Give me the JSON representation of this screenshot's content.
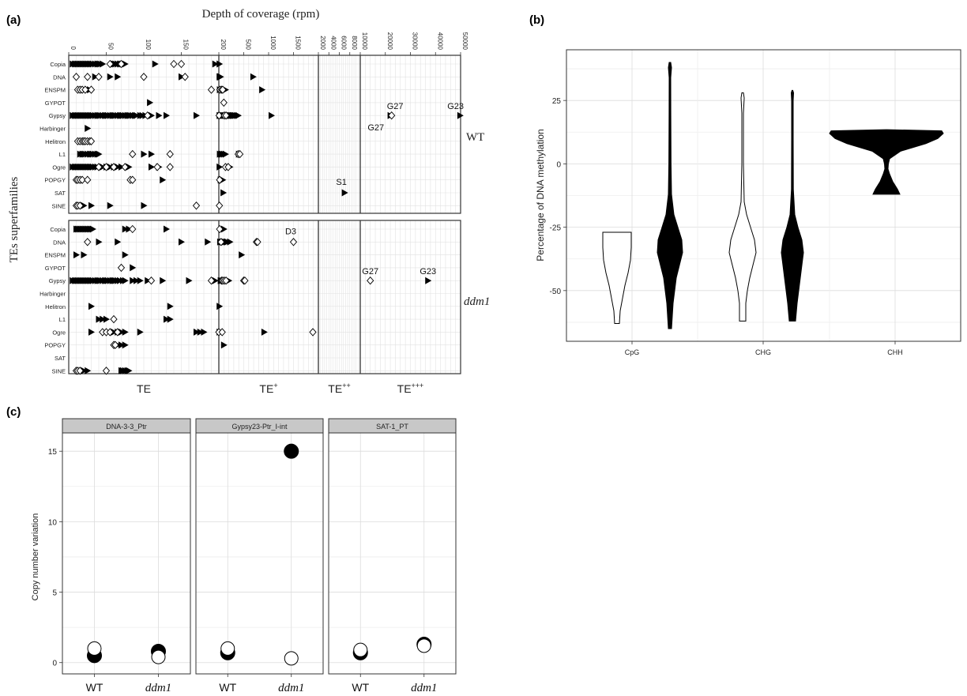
{
  "panels": {
    "a": "(a)",
    "b": "(b)",
    "c": "(c)"
  },
  "chart_data": [
    {
      "panel": "(a)",
      "type": "scatter",
      "title": "Depth of coverage (rpm)",
      "ylabel": "TEs superfamilies",
      "xlabel": "",
      "superfamilies": [
        "Copia",
        "DNA",
        "ENSPM",
        "GYPOT",
        "Gypsy",
        "Harbinger",
        "Helitron",
        "L1",
        "Ogre",
        "POPGY",
        "SAT",
        "SINE"
      ],
      "facets": [
        "WT",
        "ddm1"
      ],
      "segments": [
        {
          "label": "TE",
          "tick_labels": [
            "0",
            "50",
            "100",
            "150",
            "200"
          ],
          "range": [
            0,
            200
          ]
        },
        {
          "label": "TE",
          "sup": "+",
          "tick_labels": [
            "200",
            "500",
            "1000",
            "1500",
            "2000"
          ],
          "range": [
            200,
            2000
          ]
        },
        {
          "label": "TE",
          "sup": "++",
          "tick_labels": [
            "2000",
            "4000",
            "6000",
            "8000",
            "10000"
          ],
          "range": [
            2000,
            10000
          ]
        },
        {
          "label": "TE",
          "sup": "+++",
          "tick_labels": [
            "10000",
            "20000",
            "30000",
            "40000",
            "50000"
          ],
          "range": [
            10000,
            50000
          ]
        }
      ],
      "marker_legend": {
        "filled_triangle": "black right-pointing triangle",
        "open_diamond": "open diamond"
      },
      "annotations": [
        {
          "facet": "WT",
          "text": "G27",
          "x": 22000,
          "y": "Gypsy"
        },
        {
          "facet": "WT",
          "text": "G27",
          "x": 20000,
          "y": "Gypsy"
        },
        {
          "facet": "WT",
          "text": "G23",
          "x": 48000,
          "y": "Gypsy"
        },
        {
          "facet": "WT",
          "text": "S1",
          "x": 7000,
          "y": "SAT"
        },
        {
          "facet": "ddm1",
          "text": "D3",
          "x": 1500,
          "y": "DNA"
        },
        {
          "facet": "ddm1",
          "text": "G27",
          "x": 14000,
          "y": "Gypsy"
        },
        {
          "facet": "ddm1",
          "text": "G23",
          "x": 37000,
          "y": "Gypsy"
        }
      ],
      "points": {
        "WT": [
          {
            "fam": "Copia",
            "tri": [
              5,
              8,
              10,
              12,
              14,
              16,
              18,
              20,
              22,
              24,
              26,
              28,
              30,
              32,
              35,
              38,
              40,
              42,
              45,
              60,
              62,
              65,
              68,
              70,
              72,
              75,
              115,
              195,
              210
            ],
            "dia": [
              55,
              70,
              140,
              150
            ]
          },
          {
            "fam": "DNA",
            "tri": [
              35,
              55,
              65,
              150,
              210,
              215,
              220,
              225,
              230,
              820
            ],
            "dia": [
              10,
              25,
              40,
              100,
              155
            ]
          },
          {
            "fam": "ENSPM",
            "tri": [
              20,
              25,
              28,
              215,
              320,
              980
            ],
            "dia": [
              12,
              15,
              18,
              22,
              30,
              190,
              220,
              250,
              270
            ]
          },
          {
            "fam": "GYPOT",
            "tri": [
              108
            ],
            "dia": [
              290
            ]
          },
          {
            "fam": "Gypsy",
            "tri": [
              5,
              8,
              10,
              12,
              14,
              16,
              18,
              20,
              22,
              24,
              26,
              28,
              30,
              32,
              35,
              38,
              40,
              42,
              45,
              48,
              50,
              52,
              55,
              58,
              60,
              62,
              65,
              68,
              70,
              72,
              75,
              78,
              80,
              82,
              85,
              88,
              90,
              95,
              98,
              102,
              110,
              120,
              130,
              170,
              210,
              230,
              250,
              270,
              290,
              310,
              330,
              350,
              370,
              390,
              410,
              430,
              450,
              470,
              490,
              520,
              550,
              1150,
              22000,
              49800
            ],
            "dia": [
              105,
              205,
              300,
              330,
              22500
            ]
          },
          {
            "fam": "Harbinger",
            "tri": [
              25
            ],
            "dia": []
          },
          {
            "fam": "Helitron",
            "tri": [],
            "dia": [
              12,
              15,
              18,
              20,
              22,
              25,
              28,
              30
            ]
          },
          {
            "fam": "L1",
            "tri": [
              15,
              18,
              20,
              22,
              25,
              28,
              30,
              32,
              35,
              38,
              40,
              100,
              110,
              215,
              240,
              260,
              290,
              320,
              560
            ],
            "dia": [
              85,
              135,
              550,
              580
            ]
          },
          {
            "fam": "Ogre",
            "tri": [
              5,
              8,
              10,
              12,
              14,
              16,
              18,
              20,
              22,
              24,
              26,
              28,
              30,
              32,
              35,
              38,
              45,
              50,
              55,
              60,
              65,
              70,
              80,
              110,
              120,
              210,
              400
            ],
            "dia": [
              40,
              50,
              60,
              75,
              118,
              135,
              320,
              370
            ]
          },
          {
            "fam": "POPGY",
            "tri": [
              15,
              20,
              125,
              230,
              270
            ],
            "dia": [
              10,
              12,
              15,
              18,
              25,
              82,
              85,
              215
            ]
          },
          {
            "fam": "SAT",
            "tri": [
              280,
              7000
            ],
            "dia": []
          },
          {
            "fam": "SINE",
            "tri": [
              15,
              20,
              30,
              55,
              100
            ],
            "dia": [
              10,
              12,
              15,
              170,
              210
            ]
          }
        ],
        "ddm1": [
          {
            "fam": "Copia",
            "tri": [
              10,
              12,
              14,
              16,
              18,
              20,
              22,
              24,
              26,
              28,
              30,
              32,
              75,
              80,
              130,
              290
            ],
            "dia": [
              85,
              215
            ]
          },
          {
            "fam": "DNA",
            "tri": [
              40,
              65,
              150,
              185,
              220,
              250,
              270,
              280,
              300,
              330,
              350,
              400
            ],
            "dia": [
              25,
              240,
              880,
              900,
              1550
            ]
          },
          {
            "fam": "ENSPM",
            "tri": [
              10,
              20,
              75,
              610
            ],
            "dia": []
          },
          {
            "fam": "GYPOT",
            "tri": [
              85
            ],
            "dia": [
              70
            ]
          },
          {
            "fam": "Gypsy",
            "tri": [
              5,
              8,
              10,
              12,
              14,
              16,
              18,
              20,
              22,
              24,
              26,
              28,
              30,
              32,
              35,
              38,
              40,
              42,
              45,
              48,
              50,
              52,
              55,
              58,
              60,
              62,
              65,
              68,
              72,
              75,
              85,
              90,
              95,
              105,
              125,
              160,
              195,
              230,
              250,
              280,
              310,
              380,
              37000
            ],
            "dia": [
              110,
              190,
              250,
              270,
              300,
              330,
              650,
              670,
              14000
            ]
          },
          {
            "fam": "Harbinger",
            "tri": [],
            "dia": []
          },
          {
            "fam": "Helitron",
            "tri": [
              30,
              135,
              210
            ],
            "dia": []
          },
          {
            "fam": "L1",
            "tri": [
              40,
              45,
              50,
              130,
              135
            ],
            "dia": [
              60
            ]
          },
          {
            "fam": "Ogre",
            "tri": [
              30,
              60,
              65,
              70,
              75,
              95,
              170,
              175,
              180,
              210,
              1020
            ],
            "dia": [
              45,
              50,
              55,
              65,
              200,
              260,
              1900
            ]
          },
          {
            "fam": "POPGY",
            "tri": [
              65,
              70,
              75,
              290
            ],
            "dia": [
              60,
              62
            ]
          },
          {
            "fam": "SAT",
            "tri": [],
            "dia": []
          },
          {
            "fam": "SINE",
            "tri": [
              20,
              25,
              70,
              72,
              75,
              78,
              80
            ],
            "dia": [
              10,
              12,
              15,
              50
            ]
          }
        ]
      }
    },
    {
      "panel": "(b)",
      "type": "violin",
      "title": "",
      "xlabel": "",
      "ylabel": "Percentage of DNA methylation",
      "categories": [
        "CpG",
        "CHG",
        "CHH"
      ],
      "y_ticks": [
        -50,
        -25,
        0,
        25
      ],
      "ylim": [
        -70,
        45
      ],
      "violins": [
        {
          "category": "CpG",
          "fill": "white",
          "range": [
            -63,
            -27
          ]
        },
        {
          "category": "CpG",
          "fill": "black",
          "range": [
            -65,
            40
          ]
        },
        {
          "category": "CHG",
          "fill": "white",
          "range": [
            -62,
            28
          ]
        },
        {
          "category": "CHG",
          "fill": "black",
          "range": [
            -62,
            29
          ]
        },
        {
          "category": "CHH",
          "fill": "black",
          "range": [
            -12,
            13
          ]
        }
      ]
    },
    {
      "panel": "(c)",
      "type": "scatter",
      "title": "",
      "xlabel": "",
      "ylabel": "Copy number variation",
      "facets": [
        "DNA-3-3_Ptr",
        "Gypsy23-Ptr_I-int",
        "SAT-1_PT"
      ],
      "categories": [
        "WT",
        "ddm1"
      ],
      "y_ticks": [
        0,
        5,
        10,
        15
      ],
      "ylim": [
        -0.8,
        16.3
      ],
      "series": [
        {
          "facet": "DNA-3-3_Ptr",
          "points": [
            {
              "x": "WT",
              "filled": 0.5,
              "open": 1.0
            },
            {
              "x": "ddm1",
              "filled": 0.8,
              "open": 0.4
            }
          ]
        },
        {
          "facet": "Gypsy23-Ptr_I-int",
          "points": [
            {
              "x": "WT",
              "filled": 0.7,
              "open": 1.0
            },
            {
              "x": "ddm1",
              "filled": 15.0,
              "open": 0.3
            }
          ]
        },
        {
          "facet": "SAT-1_PT",
          "points": [
            {
              "x": "WT",
              "filled": 0.7,
              "open": 0.9
            },
            {
              "x": "ddm1",
              "filled": 1.3,
              "open": 1.2
            }
          ]
        }
      ]
    }
  ]
}
